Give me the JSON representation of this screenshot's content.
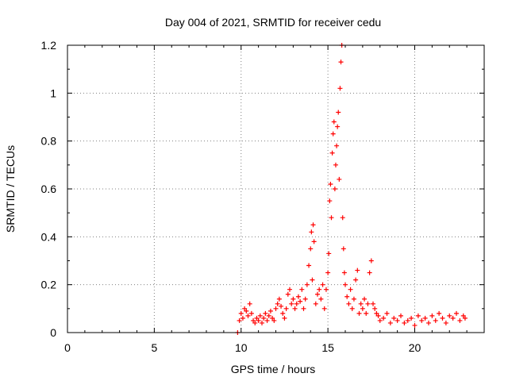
{
  "chart_data": {
    "type": "scatter",
    "title": "Day 004 of 2021, SRMTID for receiver cedu",
    "xlabel": "GPS time / hours",
    "ylabel": "SRMTID / TECUs",
    "xlim": [
      0,
      24
    ],
    "ylim": [
      0,
      1.2
    ],
    "xticks": [
      "0",
      "5",
      "10",
      "15",
      "20"
    ],
    "yticks": [
      "0",
      "0.2",
      "0.4",
      "0.6",
      "0.8",
      "1",
      "1.2"
    ],
    "grid": true,
    "marker": "+",
    "series": [
      {
        "name": "SRMTID",
        "color": "#ff0000",
        "points": [
          [
            9.8,
            0.0
          ],
          [
            9.9,
            0.05
          ],
          [
            10.0,
            0.08
          ],
          [
            10.1,
            0.06
          ],
          [
            10.2,
            0.1
          ],
          [
            10.3,
            0.09
          ],
          [
            10.4,
            0.07
          ],
          [
            10.5,
            0.12
          ],
          [
            10.6,
            0.08
          ],
          [
            10.7,
            0.05
          ],
          [
            10.8,
            0.04
          ],
          [
            10.9,
            0.06
          ],
          [
            11.0,
            0.05
          ],
          [
            11.1,
            0.07
          ],
          [
            11.2,
            0.04
          ],
          [
            11.3,
            0.06
          ],
          [
            11.4,
            0.08
          ],
          [
            11.5,
            0.05
          ],
          [
            11.6,
            0.07
          ],
          [
            11.7,
            0.09
          ],
          [
            11.8,
            0.06
          ],
          [
            11.9,
            0.05
          ],
          [
            12.0,
            0.1
          ],
          [
            12.1,
            0.12
          ],
          [
            12.2,
            0.14
          ],
          [
            12.3,
            0.11
          ],
          [
            12.4,
            0.08
          ],
          [
            12.5,
            0.06
          ],
          [
            12.6,
            0.1
          ],
          [
            12.7,
            0.16
          ],
          [
            12.8,
            0.18
          ],
          [
            12.9,
            0.12
          ],
          [
            13.0,
            0.14
          ],
          [
            13.1,
            0.1
          ],
          [
            13.2,
            0.12
          ],
          [
            13.3,
            0.15
          ],
          [
            13.4,
            0.13
          ],
          [
            13.5,
            0.18
          ],
          [
            13.6,
            0.1
          ],
          [
            13.7,
            0.14
          ],
          [
            13.8,
            0.2
          ],
          [
            13.9,
            0.28
          ],
          [
            14.0,
            0.35
          ],
          [
            14.05,
            0.42
          ],
          [
            14.1,
            0.22
          ],
          [
            14.15,
            0.45
          ],
          [
            14.2,
            0.38
          ],
          [
            14.3,
            0.12
          ],
          [
            14.4,
            0.16
          ],
          [
            14.5,
            0.18
          ],
          [
            14.6,
            0.14
          ],
          [
            14.7,
            0.2
          ],
          [
            14.8,
            0.1
          ],
          [
            14.9,
            0.18
          ],
          [
            15.0,
            0.25
          ],
          [
            15.05,
            0.33
          ],
          [
            15.1,
            0.55
          ],
          [
            15.15,
            0.62
          ],
          [
            15.2,
            0.48
          ],
          [
            15.25,
            0.75
          ],
          [
            15.3,
            0.83
          ],
          [
            15.35,
            0.88
          ],
          [
            15.4,
            0.6
          ],
          [
            15.45,
            0.7
          ],
          [
            15.5,
            0.78
          ],
          [
            15.55,
            0.86
          ],
          [
            15.6,
            0.92
          ],
          [
            15.65,
            0.64
          ],
          [
            15.7,
            1.02
          ],
          [
            15.75,
            1.13
          ],
          [
            15.8,
            1.2
          ],
          [
            15.85,
            0.48
          ],
          [
            15.9,
            0.35
          ],
          [
            15.95,
            0.25
          ],
          [
            16.0,
            0.2
          ],
          [
            16.1,
            0.15
          ],
          [
            16.2,
            0.12
          ],
          [
            16.3,
            0.18
          ],
          [
            16.4,
            0.1
          ],
          [
            16.5,
            0.14
          ],
          [
            16.6,
            0.22
          ],
          [
            16.7,
            0.26
          ],
          [
            16.8,
            0.08
          ],
          [
            16.9,
            0.12
          ],
          [
            17.0,
            0.1
          ],
          [
            17.1,
            0.14
          ],
          [
            17.2,
            0.08
          ],
          [
            17.3,
            0.12
          ],
          [
            17.4,
            0.25
          ],
          [
            17.5,
            0.3
          ],
          [
            17.6,
            0.12
          ],
          [
            17.7,
            0.1
          ],
          [
            17.8,
            0.08
          ],
          [
            17.9,
            0.07
          ],
          [
            18.0,
            0.05
          ],
          [
            18.2,
            0.06
          ],
          [
            18.4,
            0.08
          ],
          [
            18.6,
            0.04
          ],
          [
            18.8,
            0.06
          ],
          [
            19.0,
            0.05
          ],
          [
            19.2,
            0.07
          ],
          [
            19.4,
            0.04
          ],
          [
            19.6,
            0.05
          ],
          [
            19.8,
            0.06
          ],
          [
            20.0,
            0.03
          ],
          [
            20.2,
            0.07
          ],
          [
            20.4,
            0.05
          ],
          [
            20.6,
            0.06
          ],
          [
            20.8,
            0.04
          ],
          [
            21.0,
            0.07
          ],
          [
            21.2,
            0.05
          ],
          [
            21.4,
            0.08
          ],
          [
            21.6,
            0.06
          ],
          [
            21.8,
            0.04
          ],
          [
            22.0,
            0.07
          ],
          [
            22.2,
            0.06
          ],
          [
            22.4,
            0.08
          ],
          [
            22.6,
            0.05
          ],
          [
            22.8,
            0.07
          ],
          [
            22.9,
            0.06
          ]
        ]
      }
    ]
  }
}
